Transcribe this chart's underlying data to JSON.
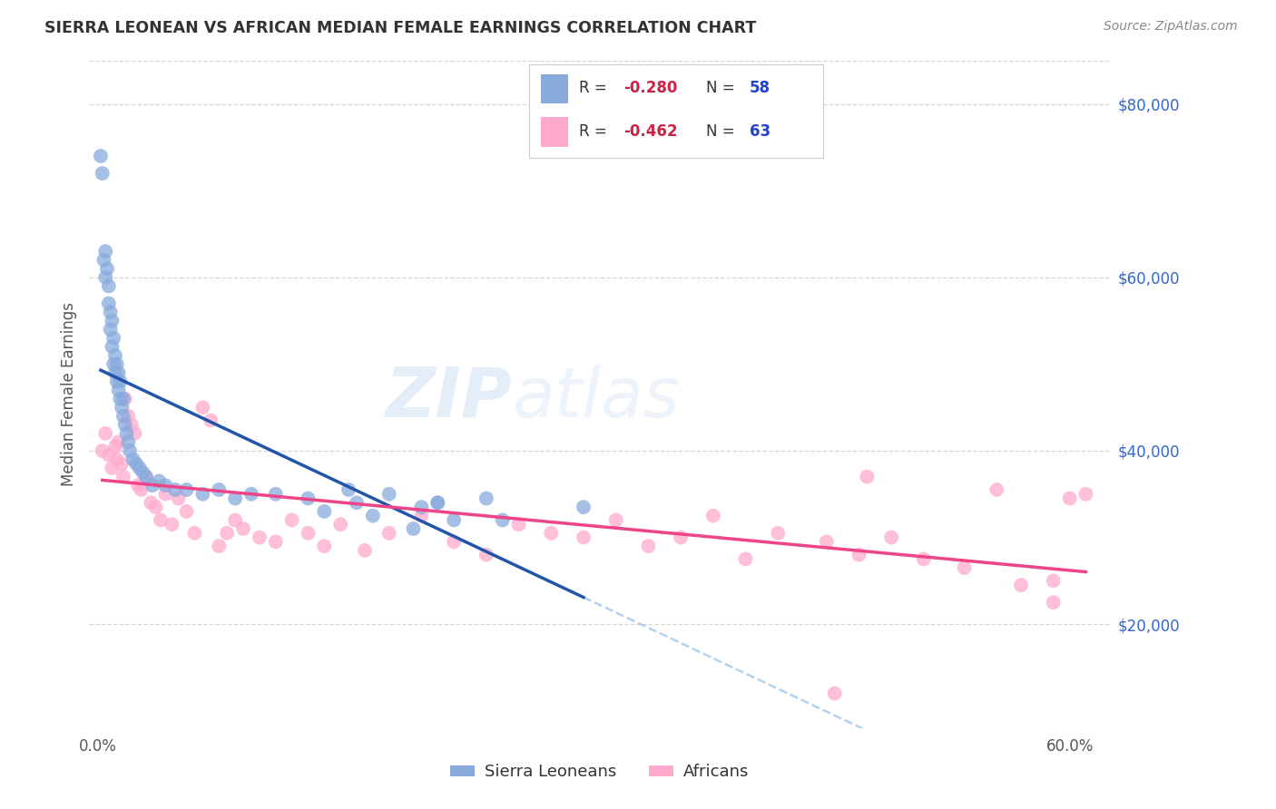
{
  "title": "SIERRA LEONEAN VS AFRICAN MEDIAN FEMALE EARNINGS CORRELATION CHART",
  "source": "Source: ZipAtlas.com",
  "ylabel": "Median Female Earnings",
  "ylim": [
    8000,
    85000
  ],
  "xlim": [
    -0.005,
    0.625
  ],
  "watermark": "ZIPatlas",
  "legend_label_blue": "Sierra Leoneans",
  "legend_label_pink": "Africans",
  "blue_scatter_color": "#88AADD",
  "pink_scatter_color": "#FFAACC",
  "blue_line_color": "#2255AA",
  "pink_line_color": "#EE4488",
  "dashed_line_color": "#AACCEE",
  "title_color": "#333333",
  "source_color": "#888888",
  "axis_label_color": "#555555",
  "right_tick_color": "#3366CC",
  "legend_r_color": "#CC2244",
  "legend_n_color": "#2244CC",
  "background_color": "#FFFFFF",
  "grid_color": "#CCCCCC",
  "sierra_x": [
    0.002,
    0.003,
    0.004,
    0.005,
    0.005,
    0.006,
    0.007,
    0.007,
    0.008,
    0.008,
    0.009,
    0.009,
    0.01,
    0.01,
    0.011,
    0.011,
    0.012,
    0.012,
    0.013,
    0.013,
    0.014,
    0.014,
    0.015,
    0.016,
    0.016,
    0.017,
    0.018,
    0.019,
    0.02,
    0.022,
    0.024,
    0.026,
    0.028,
    0.03,
    0.034,
    0.038,
    0.042,
    0.048,
    0.055,
    0.065,
    0.075,
    0.085,
    0.095,
    0.11,
    0.13,
    0.155,
    0.18,
    0.21,
    0.24,
    0.14,
    0.16,
    0.2,
    0.22,
    0.25,
    0.3,
    0.21,
    0.17,
    0.195
  ],
  "sierra_y": [
    74000,
    72000,
    62000,
    60000,
    63000,
    61000,
    59000,
    57000,
    56000,
    54000,
    52000,
    55000,
    50000,
    53000,
    49000,
    51000,
    48000,
    50000,
    47000,
    49000,
    46000,
    48000,
    45000,
    44000,
    46000,
    43000,
    42000,
    41000,
    40000,
    39000,
    38500,
    38000,
    37500,
    37000,
    36000,
    36500,
    36000,
    35500,
    35500,
    35000,
    35500,
    34500,
    35000,
    35000,
    34500,
    35500,
    35000,
    34000,
    34500,
    33000,
    34000,
    33500,
    32000,
    32000,
    33500,
    34000,
    32500,
    31000
  ],
  "africa_x": [
    0.003,
    0.005,
    0.007,
    0.009,
    0.011,
    0.012,
    0.013,
    0.015,
    0.016,
    0.017,
    0.019,
    0.021,
    0.023,
    0.025,
    0.027,
    0.03,
    0.033,
    0.036,
    0.039,
    0.042,
    0.046,
    0.05,
    0.055,
    0.06,
    0.065,
    0.07,
    0.075,
    0.08,
    0.085,
    0.09,
    0.1,
    0.11,
    0.12,
    0.13,
    0.14,
    0.15,
    0.165,
    0.18,
    0.2,
    0.22,
    0.24,
    0.26,
    0.28,
    0.3,
    0.32,
    0.34,
    0.36,
    0.38,
    0.4,
    0.42,
    0.45,
    0.47,
    0.49,
    0.51,
    0.535,
    0.555,
    0.57,
    0.59,
    0.6,
    0.61,
    0.455,
    0.475,
    0.59
  ],
  "africa_y": [
    40000,
    42000,
    39500,
    38000,
    40500,
    39000,
    41000,
    38500,
    37000,
    46000,
    44000,
    43000,
    42000,
    36000,
    35500,
    37000,
    34000,
    33500,
    32000,
    35000,
    31500,
    34500,
    33000,
    30500,
    45000,
    43500,
    29000,
    30500,
    32000,
    31000,
    30000,
    29500,
    32000,
    30500,
    29000,
    31500,
    28500,
    30500,
    32500,
    29500,
    28000,
    31500,
    30500,
    30000,
    32000,
    29000,
    30000,
    32500,
    27500,
    30500,
    29500,
    28000,
    30000,
    27500,
    26500,
    35500,
    24500,
    22500,
    34500,
    35000,
    12000,
    37000,
    25000
  ]
}
